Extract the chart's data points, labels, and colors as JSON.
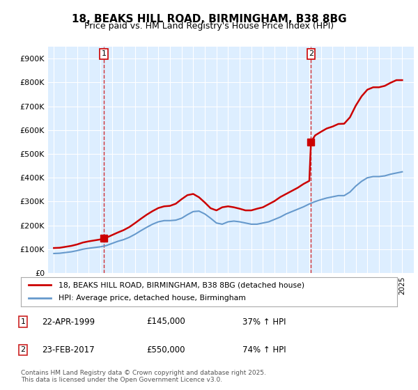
{
  "title": "18, BEAKS HILL ROAD, BIRMINGHAM, B38 8BG",
  "subtitle": "Price paid vs. HM Land Registry's House Price Index (HPI)",
  "legend_line1": "18, BEAKS HILL ROAD, BIRMINGHAM, B38 8BG (detached house)",
  "legend_line2": "HPI: Average price, detached house, Birmingham",
  "footnote": "Contains HM Land Registry data © Crown copyright and database right 2025.\nThis data is licensed under the Open Government Licence v3.0.",
  "sale1_label": "1",
  "sale1_date": "22-APR-1999",
  "sale1_price": "£145,000",
  "sale1_hpi": "37% ↑ HPI",
  "sale2_label": "2",
  "sale2_date": "23-FEB-2017",
  "sale2_price": "£550,000",
  "sale2_hpi": "74% ↑ HPI",
  "red_color": "#cc0000",
  "blue_color": "#6699cc",
  "background_color": "#ddeeff",
  "plot_bg_color": "#ddeeff",
  "ylim": [
    0,
    950000
  ],
  "yticks": [
    0,
    100000,
    200000,
    300000,
    400000,
    500000,
    600000,
    700000,
    800000,
    900000
  ],
  "ytick_labels": [
    "£0",
    "£100K",
    "£200K",
    "£300K",
    "£400K",
    "£500K",
    "£600K",
    "£700K",
    "£800K",
    "£900K"
  ],
  "xlim_start": 1994.5,
  "xlim_end": 2026.0,
  "sale1_x": 1999.31,
  "sale1_y": 145000,
  "sale2_x": 2017.14,
  "sale2_y": 550000,
  "hpi_x": [
    1995,
    1995.5,
    1996,
    1996.5,
    1997,
    1997.5,
    1998,
    1998.5,
    1999,
    1999.5,
    2000,
    2000.5,
    2001,
    2001.5,
    2002,
    2002.5,
    2003,
    2003.5,
    2004,
    2004.5,
    2005,
    2005.5,
    2006,
    2006.5,
    2007,
    2007.5,
    2008,
    2008.5,
    2009,
    2009.5,
    2010,
    2010.5,
    2011,
    2011.5,
    2012,
    2012.5,
    2013,
    2013.5,
    2014,
    2014.5,
    2015,
    2015.5,
    2016,
    2016.5,
    2017,
    2017.5,
    2018,
    2018.5,
    2019,
    2019.5,
    2020,
    2020.5,
    2021,
    2021.5,
    2022,
    2022.5,
    2023,
    2023.5,
    2024,
    2024.5,
    2025
  ],
  "hpi_y": [
    82000,
    83000,
    86000,
    89000,
    94000,
    100000,
    104000,
    107000,
    110000,
    115000,
    124000,
    133000,
    140000,
    150000,
    163000,
    178000,
    192000,
    205000,
    215000,
    220000,
    220000,
    222000,
    230000,
    245000,
    258000,
    260000,
    248000,
    230000,
    210000,
    205000,
    215000,
    218000,
    215000,
    210000,
    205000,
    205000,
    210000,
    215000,
    225000,
    235000,
    248000,
    258000,
    268000,
    278000,
    290000,
    300000,
    308000,
    315000,
    320000,
    325000,
    325000,
    340000,
    365000,
    385000,
    400000,
    405000,
    405000,
    408000,
    415000,
    420000,
    425000
  ],
  "red_x": [
    1995,
    1995.5,
    1996,
    1996.5,
    1997,
    1997.5,
    1998,
    1998.5,
    1999,
    1999.31,
    1999.5,
    2000,
    2000.5,
    2001,
    2001.5,
    2002,
    2002.5,
    2003,
    2003.5,
    2004,
    2004.5,
    2005,
    2005.5,
    2006,
    2006.5,
    2007,
    2007.5,
    2008,
    2008.5,
    2009,
    2009.5,
    2010,
    2010.5,
    2011,
    2011.5,
    2012,
    2012.5,
    2013,
    2013.5,
    2014,
    2014.5,
    2015,
    2015.5,
    2016,
    2016.5,
    2017,
    2017.14,
    2017.5,
    2018,
    2018.5,
    2019,
    2019.5,
    2020,
    2020.5,
    2021,
    2021.5,
    2022,
    2022.5,
    2023,
    2023.5,
    2024,
    2024.5,
    2025
  ],
  "red_y": [
    105000,
    106000,
    110000,
    114000,
    120000,
    128000,
    133000,
    137000,
    141000,
    145000,
    148000,
    159000,
    170000,
    180000,
    193000,
    210000,
    228000,
    245000,
    260000,
    273000,
    280000,
    282000,
    291000,
    310000,
    327000,
    332000,
    318000,
    296000,
    272000,
    263000,
    276000,
    280000,
    276000,
    270000,
    263000,
    263000,
    270000,
    276000,
    289000,
    302000,
    319000,
    332000,
    345000,
    358000,
    374000,
    387000,
    550000,
    578000,
    593000,
    607000,
    615000,
    626000,
    627000,
    654000,
    703000,
    742000,
    770000,
    780000,
    780000,
    786000,
    799000,
    810000,
    810000
  ]
}
